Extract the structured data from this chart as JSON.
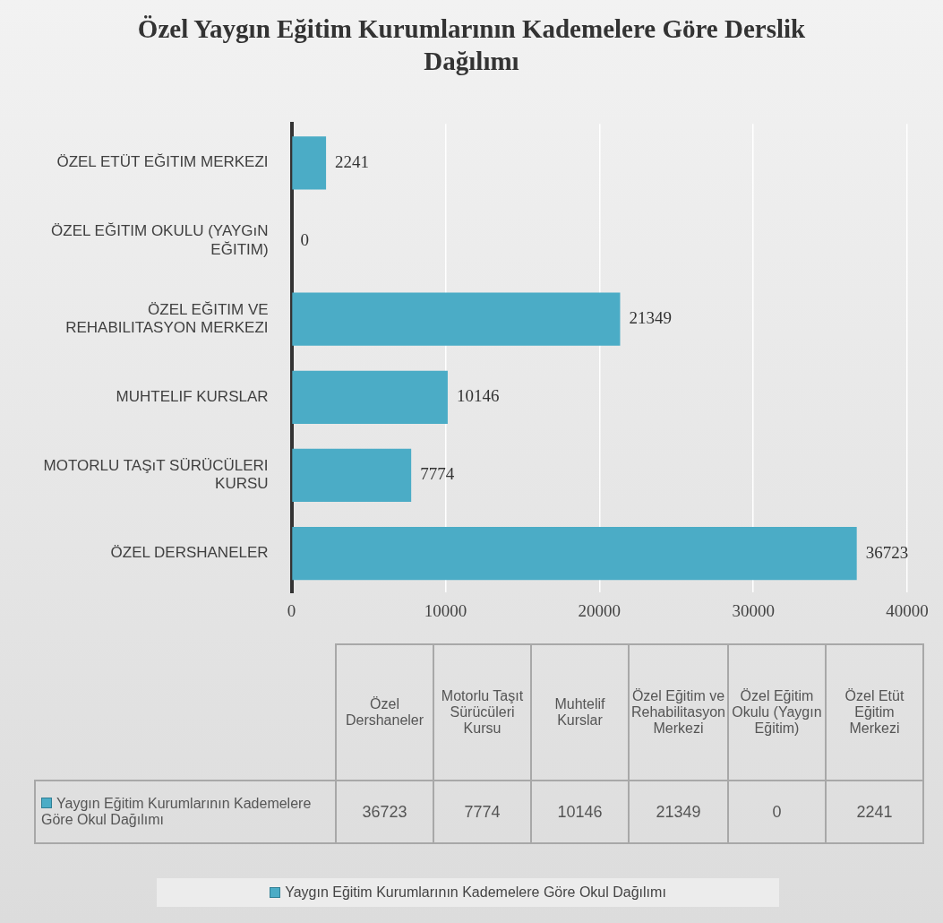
{
  "chart_data": {
    "type": "bar",
    "orientation": "horizontal",
    "title": "Özel Yaygın Eğitim Kurumlarının Kademelere Göre Derslik Dağılımı",
    "categories": [
      "ÖZEL ETÜT EĞITIM MERKEZI",
      "ÖZEL EĞITIM OKULU (YAYGıN EĞITIM)",
      "ÖZEL EĞITIM VE REHABILITASYON MERKEZI",
      "MUHTELIF KURSLAR",
      "MOTORLU TAŞıT SÜRÜCÜLERI KURSU",
      "ÖZEL DERSHANELER"
    ],
    "series": [
      {
        "name": "Yaygın Eğitim  Kurumlarının Kademelere Göre Okul Dağılımı",
        "color": "#4bacc6",
        "values": [
          2241,
          0,
          21349,
          10146,
          7774,
          36723
        ],
        "value_labels": [
          "2241",
          "0",
          "21349",
          "10146",
          "7774",
          "36723"
        ]
      }
    ],
    "xlim": [
      0,
      40000
    ],
    "xticks": [
      0,
      10000,
      20000,
      30000,
      40000
    ],
    "grid": "x",
    "legend": "bottom",
    "annotations": [
      "Özel Dershaneler",
      "Motorlu Taşıt Sürücüleri Kursu",
      "Muhtelif Kurslar",
      "Özel Eğitim ve Rehabilitasyon Merkezi",
      "Özel Eğitim Okulu (Yaygın Eğitim)",
      "Özel Etüt Eğitim Merkezi"
    ]
  }
}
